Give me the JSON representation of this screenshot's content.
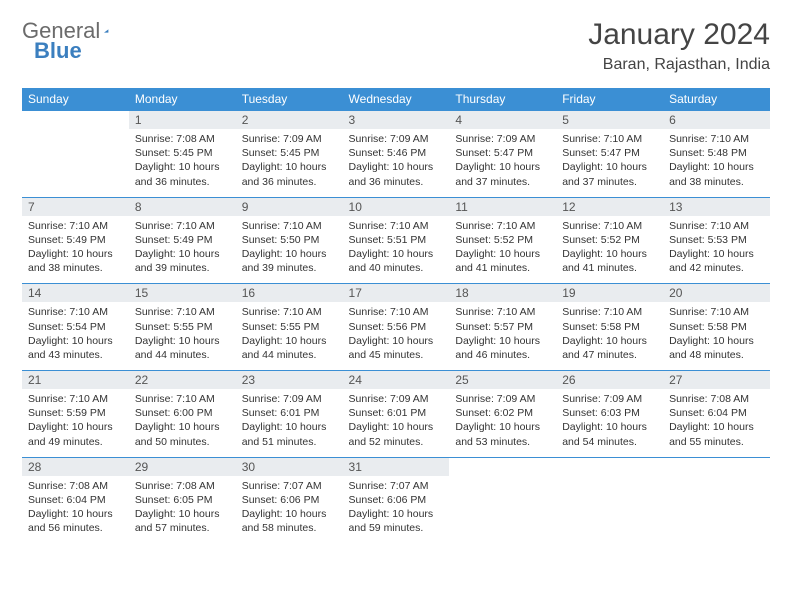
{
  "logo": {
    "part1": "General",
    "part2": "Blue"
  },
  "title": "January 2024",
  "location": "Baran, Rajasthan, India",
  "colors": {
    "header_bg": "#3b8fd4",
    "header_text": "#ffffff",
    "daynum_bg": "#e9ecef",
    "border": "#3b8fd4"
  },
  "weekdays": [
    "Sunday",
    "Monday",
    "Tuesday",
    "Wednesday",
    "Thursday",
    "Friday",
    "Saturday"
  ],
  "weeks": [
    [
      {
        "empty": true
      },
      {
        "n": "1",
        "sr": "7:08 AM",
        "ss": "5:45 PM",
        "dl": "10 hours and 36 minutes."
      },
      {
        "n": "2",
        "sr": "7:09 AM",
        "ss": "5:45 PM",
        "dl": "10 hours and 36 minutes."
      },
      {
        "n": "3",
        "sr": "7:09 AM",
        "ss": "5:46 PM",
        "dl": "10 hours and 36 minutes."
      },
      {
        "n": "4",
        "sr": "7:09 AM",
        "ss": "5:47 PM",
        "dl": "10 hours and 37 minutes."
      },
      {
        "n": "5",
        "sr": "7:10 AM",
        "ss": "5:47 PM",
        "dl": "10 hours and 37 minutes."
      },
      {
        "n": "6",
        "sr": "7:10 AM",
        "ss": "5:48 PM",
        "dl": "10 hours and 38 minutes."
      }
    ],
    [
      {
        "n": "7",
        "sr": "7:10 AM",
        "ss": "5:49 PM",
        "dl": "10 hours and 38 minutes."
      },
      {
        "n": "8",
        "sr": "7:10 AM",
        "ss": "5:49 PM",
        "dl": "10 hours and 39 minutes."
      },
      {
        "n": "9",
        "sr": "7:10 AM",
        "ss": "5:50 PM",
        "dl": "10 hours and 39 minutes."
      },
      {
        "n": "10",
        "sr": "7:10 AM",
        "ss": "5:51 PM",
        "dl": "10 hours and 40 minutes."
      },
      {
        "n": "11",
        "sr": "7:10 AM",
        "ss": "5:52 PM",
        "dl": "10 hours and 41 minutes."
      },
      {
        "n": "12",
        "sr": "7:10 AM",
        "ss": "5:52 PM",
        "dl": "10 hours and 41 minutes."
      },
      {
        "n": "13",
        "sr": "7:10 AM",
        "ss": "5:53 PM",
        "dl": "10 hours and 42 minutes."
      }
    ],
    [
      {
        "n": "14",
        "sr": "7:10 AM",
        "ss": "5:54 PM",
        "dl": "10 hours and 43 minutes."
      },
      {
        "n": "15",
        "sr": "7:10 AM",
        "ss": "5:55 PM",
        "dl": "10 hours and 44 minutes."
      },
      {
        "n": "16",
        "sr": "7:10 AM",
        "ss": "5:55 PM",
        "dl": "10 hours and 44 minutes."
      },
      {
        "n": "17",
        "sr": "7:10 AM",
        "ss": "5:56 PM",
        "dl": "10 hours and 45 minutes."
      },
      {
        "n": "18",
        "sr": "7:10 AM",
        "ss": "5:57 PM",
        "dl": "10 hours and 46 minutes."
      },
      {
        "n": "19",
        "sr": "7:10 AM",
        "ss": "5:58 PM",
        "dl": "10 hours and 47 minutes."
      },
      {
        "n": "20",
        "sr": "7:10 AM",
        "ss": "5:58 PM",
        "dl": "10 hours and 48 minutes."
      }
    ],
    [
      {
        "n": "21",
        "sr": "7:10 AM",
        "ss": "5:59 PM",
        "dl": "10 hours and 49 minutes."
      },
      {
        "n": "22",
        "sr": "7:10 AM",
        "ss": "6:00 PM",
        "dl": "10 hours and 50 minutes."
      },
      {
        "n": "23",
        "sr": "7:09 AM",
        "ss": "6:01 PM",
        "dl": "10 hours and 51 minutes."
      },
      {
        "n": "24",
        "sr": "7:09 AM",
        "ss": "6:01 PM",
        "dl": "10 hours and 52 minutes."
      },
      {
        "n": "25",
        "sr": "7:09 AM",
        "ss": "6:02 PM",
        "dl": "10 hours and 53 minutes."
      },
      {
        "n": "26",
        "sr": "7:09 AM",
        "ss": "6:03 PM",
        "dl": "10 hours and 54 minutes."
      },
      {
        "n": "27",
        "sr": "7:08 AM",
        "ss": "6:04 PM",
        "dl": "10 hours and 55 minutes."
      }
    ],
    [
      {
        "n": "28",
        "sr": "7:08 AM",
        "ss": "6:04 PM",
        "dl": "10 hours and 56 minutes."
      },
      {
        "n": "29",
        "sr": "7:08 AM",
        "ss": "6:05 PM",
        "dl": "10 hours and 57 minutes."
      },
      {
        "n": "30",
        "sr": "7:07 AM",
        "ss": "6:06 PM",
        "dl": "10 hours and 58 minutes."
      },
      {
        "n": "31",
        "sr": "7:07 AM",
        "ss": "6:06 PM",
        "dl": "10 hours and 59 minutes."
      },
      {
        "empty": true
      },
      {
        "empty": true
      },
      {
        "empty": true
      }
    ]
  ],
  "labels": {
    "sunrise": "Sunrise: ",
    "sunset": "Sunset: ",
    "daylight": "Daylight: "
  }
}
